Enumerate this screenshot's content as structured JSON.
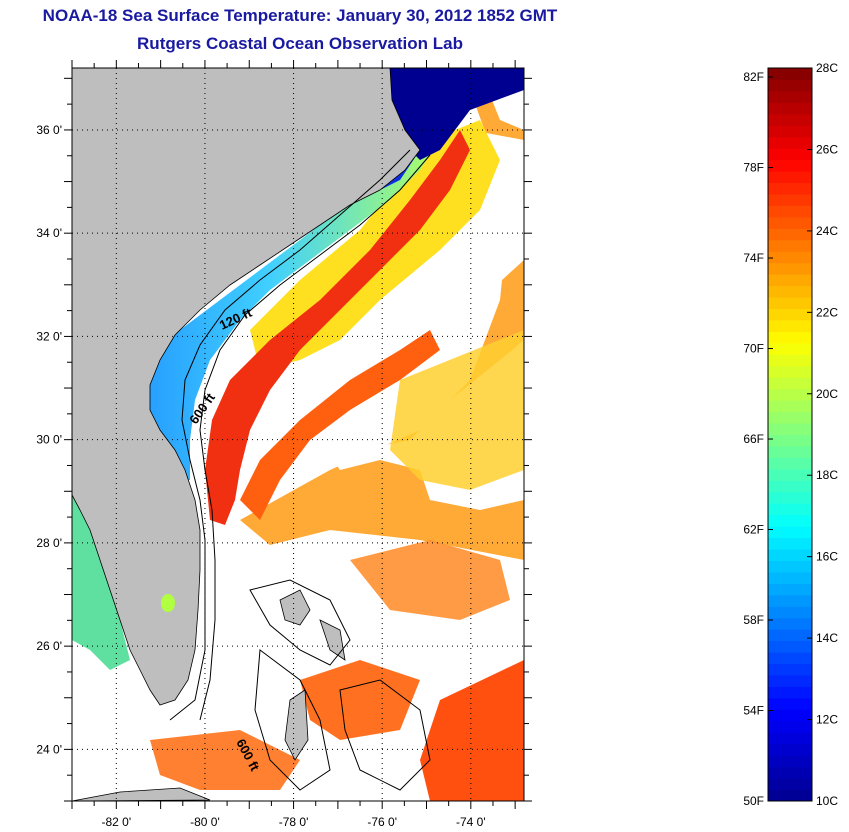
{
  "title": "NOAA-18 Sea Surface Temperature:  January 30, 2012 1852 GMT",
  "subtitle": "Rutgers Coastal Ocean Observation Lab",
  "map": {
    "lat_ticks": [
      "36 0'",
      "34 0'",
      "32 0'",
      "30 0'",
      "28 0'",
      "26 0'",
      "24 0'"
    ],
    "lon_ticks": [
      "-82 0'",
      "-80 0'",
      "-78 0'",
      "-76 0'",
      "-74 0'"
    ],
    "contour_labels": [
      "120 ft",
      "600 ft",
      "600 ft"
    ],
    "colors": {
      "land": "#bebebe",
      "cloud": "#ffffff"
    }
  },
  "colorbar": {
    "fahrenheit_labels": [
      "82F",
      "78F",
      "74F",
      "70F",
      "66F",
      "62F",
      "58F",
      "54F",
      "50F"
    ],
    "celsius_labels": [
      "28C",
      "26C",
      "24C",
      "22C",
      "20C",
      "18C",
      "16C",
      "14C",
      "12C",
      "10C"
    ],
    "range_c": [
      10,
      28
    ],
    "colormap": [
      "#00008f",
      "#0000ff",
      "#0080ff",
      "#00ffff",
      "#80ff80",
      "#ffff00",
      "#ff8000",
      "#ff0000",
      "#800000"
    ]
  }
}
